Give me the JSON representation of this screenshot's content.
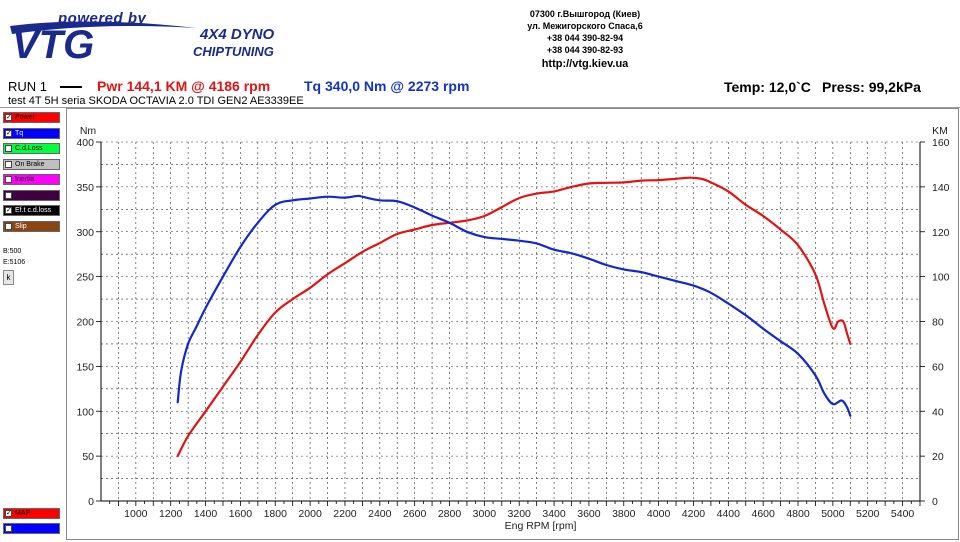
{
  "header": {
    "powered_by": "powered by",
    "brand": "VTG",
    "dyno": "4X4 DYNO",
    "chiptuning": "CHIPTUNING",
    "address": [
      "07300 г.Вышгород (Киев)",
      "ул. Межигорского Спаса,6",
      "+38 044 390-82-94",
      "+38 044 390-82-93"
    ],
    "url": "http://vtg.kiev.ua",
    "brand_color": "#1a2a8c"
  },
  "run": {
    "label": "RUN 1",
    "pwr": "Pwr  144,1 KM @ 4186 rpm",
    "tq": "Tq 340,0 Nm @ 2273 rpm",
    "temp": "Temp: 12,0`C",
    "press": "Press: 99,2kPa",
    "test": "test  4T 5H seria SKODA OCTAVIA 2.0 TDI GEN2 AE3339EE"
  },
  "legend": [
    {
      "label": "Power",
      "color": "#ff0000",
      "checked": true
    },
    {
      "label": "Tq",
      "color": "#0000ff",
      "checked": true
    },
    {
      "label": "C.d.Loss",
      "color": "#00ff40",
      "checked": false
    },
    {
      "label": "On Brake",
      "color": "#c0c0c0",
      "checked": false
    },
    {
      "label": "Inertia",
      "color": "#ff00ff",
      "checked": false
    },
    {
      "label": "",
      "color": "#400040",
      "checked": false
    },
    {
      "label": "Ef.t c.d.loss",
      "color": "#000000",
      "checked": true
    },
    {
      "label": "Slip",
      "color": "#8b4513",
      "checked": false
    }
  ],
  "side_info": {
    "b": "B:500",
    "e": "E:5106",
    "k_button": "k"
  },
  "bottom_legend": [
    {
      "label": "MAP",
      "color": "#ff0000",
      "checked": true
    },
    {
      "label": "",
      "color": "#0000ff",
      "checked": false
    }
  ],
  "chart_data": {
    "type": "line",
    "xlabel": "Eng RPM [rpm]",
    "ylabel_left": "Nm",
    "ylabel_right": "KM",
    "xlim": [
      800,
      5500
    ],
    "ylim_left": [
      0,
      400
    ],
    "ylim_right": [
      0,
      160
    ],
    "xticks": [
      1000,
      1200,
      1400,
      1600,
      1800,
      2000,
      2200,
      2400,
      2600,
      2800,
      3000,
      3200,
      3400,
      3600,
      3800,
      4000,
      4200,
      4400,
      4600,
      4800,
      5000,
      5200,
      5400
    ],
    "yticks_left": [
      0,
      50,
      100,
      150,
      200,
      250,
      300,
      350,
      400
    ],
    "yticks_right": [
      0,
      20,
      40,
      60,
      80,
      100,
      120,
      140,
      160
    ],
    "grid": true,
    "series": [
      {
        "name": "Power",
        "axis": "right",
        "color": "#e01414",
        "x": [
          1240,
          1300,
          1400,
          1500,
          1600,
          1700,
          1800,
          1900,
          2000,
          2100,
          2200,
          2300,
          2400,
          2500,
          2600,
          2700,
          2800,
          2900,
          3000,
          3100,
          3200,
          3300,
          3400,
          3500,
          3600,
          3700,
          3800,
          3900,
          4000,
          4100,
          4186,
          4250,
          4300,
          4400,
          4500,
          4600,
          4700,
          4800,
          4900,
          4950,
          5000,
          5030,
          5060,
          5080,
          5100
        ],
        "y": [
          20,
          29,
          40,
          51,
          62,
          74,
          84,
          90,
          95,
          101,
          106,
          111,
          115,
          119,
          121,
          123,
          124,
          125,
          127,
          131,
          135,
          137,
          138,
          140,
          141.5,
          141.8,
          142,
          142.8,
          143,
          143.6,
          144.1,
          143.5,
          142,
          138,
          132,
          127,
          121,
          114,
          101,
          88,
          77,
          80,
          80,
          75,
          70
        ]
      },
      {
        "name": "Tq",
        "axis": "left",
        "color": "#1428c8",
        "x": [
          1240,
          1260,
          1300,
          1350,
          1400,
          1500,
          1600,
          1700,
          1800,
          1900,
          2000,
          2100,
          2200,
          2273,
          2300,
          2400,
          2500,
          2600,
          2700,
          2800,
          2900,
          3000,
          3100,
          3200,
          3300,
          3400,
          3500,
          3600,
          3700,
          3800,
          3900,
          4000,
          4100,
          4200,
          4300,
          4400,
          4500,
          4600,
          4700,
          4800,
          4900,
          4950,
          5000,
          5050,
          5080,
          5100
        ],
        "y": [
          110,
          145,
          175,
          195,
          215,
          250,
          283,
          310,
          330,
          335,
          337,
          339,
          338,
          340,
          339,
          335,
          334,
          327,
          318,
          310,
          300,
          294,
          292,
          290,
          287,
          280,
          276,
          270,
          263,
          258,
          255,
          250,
          245,
          240,
          232,
          220,
          207,
          192,
          178,
          164,
          140,
          120,
          108,
          112,
          105,
          95
        ]
      }
    ]
  }
}
